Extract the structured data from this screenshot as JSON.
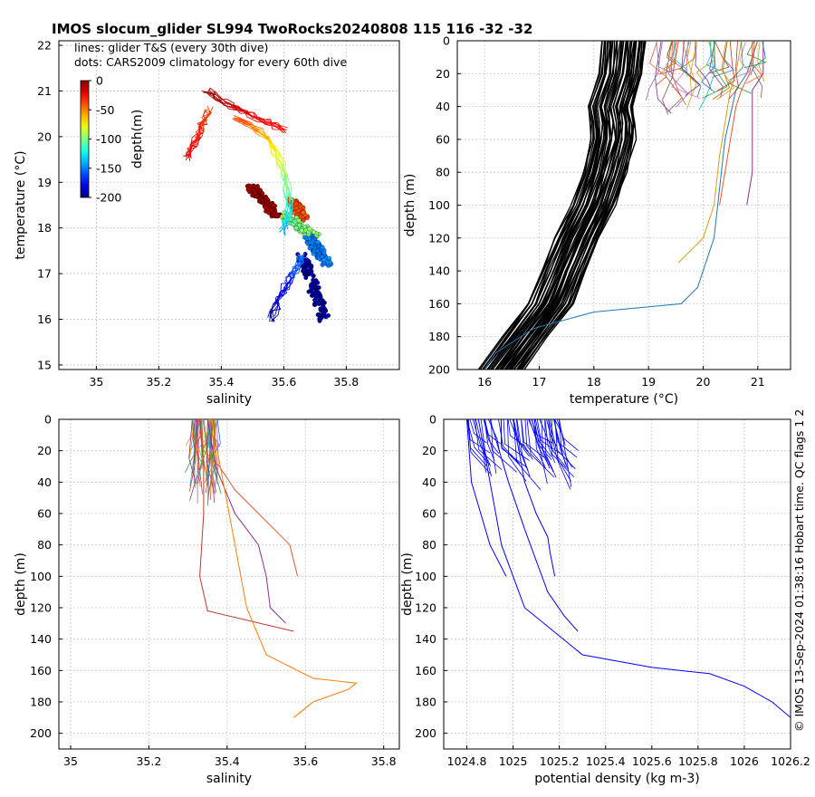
{
  "title": "IMOS slocum_glider SL994 TwoRocks20240808 115  116  -32  -32",
  "side_note": "© IMOS 13-Sep-2024 01:38:16 Hobart time. QC flags 1  2",
  "colors": {
    "glider_black": "#000000",
    "density_blue": "#0000ff",
    "grid": "#c8c8c8"
  },
  "chart_data": [
    {
      "id": "ts",
      "type": "scatter",
      "xlabel": "salinity",
      "ylabel": "temperature (°C)",
      "xlim": [
        34.88,
        35.97
      ],
      "ylim": [
        14.9,
        22.1
      ],
      "xticks": [
        35,
        35.2,
        35.4,
        35.6,
        35.8
      ],
      "yticks": [
        15,
        16,
        17,
        18,
        19,
        20,
        21,
        22
      ],
      "grid": true,
      "legend_text": [
        "lines: glider T&S (every 30th dive)",
        "dots: CARS2009 climatology for every 60th dive"
      ],
      "colorbar": {
        "label": "depth(m)",
        "ticks": [
          0,
          -50,
          -100,
          -150,
          -200
        ],
        "range": [
          -200,
          0
        ],
        "placement": "top-left"
      },
      "climatology_clusters": [
        {
          "depth": -5,
          "s": [
            35.49,
            35.58
          ],
          "t": [
            18.95,
            18.25
          ]
        },
        {
          "depth": -40,
          "s": [
            35.63,
            35.66
          ],
          "t": [
            18.6,
            18.2
          ]
        },
        {
          "depth": -100,
          "s": [
            35.6,
            35.7
          ],
          "t": [
            18.3,
            17.8
          ]
        },
        {
          "depth": -150,
          "s": [
            35.68,
            35.74
          ],
          "t": [
            17.8,
            17.2
          ]
        },
        {
          "depth": -195,
          "s": [
            35.66,
            35.73
          ],
          "t": [
            17.4,
            16.0
          ]
        }
      ],
      "glider_lines": [
        {
          "depth_from": -20,
          "depth_to": -40,
          "s": [
            35.29,
            35.33,
            35.36
          ],
          "t": [
            19.5,
            20.1,
            20.6
          ]
        },
        {
          "depth_from": -5,
          "depth_to": -30,
          "s": [
            35.35,
            35.42,
            35.5,
            35.6
          ],
          "t": [
            21.0,
            20.7,
            20.45,
            20.15
          ]
        },
        {
          "depth_from": -40,
          "depth_to": -150,
          "s": [
            35.45,
            35.55,
            35.6,
            35.62,
            35.6
          ],
          "t": [
            20.4,
            20.0,
            19.3,
            18.5,
            17.9
          ]
        },
        {
          "depth_from": -150,
          "depth_to": -200,
          "s": [
            35.66,
            35.61,
            35.56
          ],
          "t": [
            17.4,
            16.8,
            16.0
          ]
        }
      ]
    },
    {
      "id": "temp_depth",
      "type": "line",
      "xlabel": "temperature (°C)",
      "ylabel": "depth (m)",
      "xlim": [
        15.5,
        21.6
      ],
      "ylim": [
        0,
        200
      ],
      "y_reversed": true,
      "xticks": [
        16,
        17,
        18,
        19,
        20,
        21
      ],
      "yticks": [
        0,
        20,
        40,
        60,
        80,
        100,
        120,
        140,
        160,
        180,
        200
      ],
      "grid": true,
      "climatology_profile": {
        "depth": [
          0,
          20,
          40,
          50,
          60,
          80,
          100,
          120,
          140,
          160,
          180,
          200
        ],
        "temperature": [
          18.55,
          18.5,
          18.3,
          18.35,
          18.35,
          18.2,
          18.0,
          17.7,
          17.45,
          17.2,
          16.75,
          16.3
        ],
        "spread": 0.4
      },
      "glider_profiles": [
        {
          "depth": [
            0,
            10,
            20,
            30,
            40,
            60,
            80,
            100
          ],
          "temperature": [
            20.9,
            20.9,
            20.85,
            20.7,
            20.6,
            20.5,
            20.4,
            20.3
          ]
        },
        {
          "depth": [
            0,
            20,
            30,
            50,
            70,
            100,
            120,
            135
          ],
          "temperature": [
            20.7,
            20.6,
            20.5,
            20.4,
            20.3,
            20.2,
            20.0,
            19.55
          ]
        },
        {
          "depth": [
            0,
            20,
            30,
            60,
            90,
            120,
            150,
            160,
            165,
            175,
            190,
            200
          ],
          "temperature": [
            21.0,
            20.8,
            20.6,
            20.4,
            20.3,
            20.2,
            19.9,
            19.6,
            18.0,
            16.9,
            16.2,
            16.0
          ]
        },
        {
          "depth": [
            0,
            20,
            30,
            50,
            80,
            100
          ],
          "temperature": [
            21.1,
            21.1,
            20.9,
            20.9,
            20.9,
            20.8
          ]
        }
      ]
    },
    {
      "id": "sal_depth",
      "type": "line",
      "xlabel": "salinity",
      "ylabel": "depth (m)",
      "xlim": [
        34.97,
        35.84
      ],
      "ylim": [
        0,
        210
      ],
      "y_reversed": true,
      "xticks": [
        35,
        35.2,
        35.4,
        35.6,
        35.8
      ],
      "yticks": [
        0,
        20,
        40,
        60,
        80,
        100,
        120,
        140,
        160,
        180,
        200
      ],
      "grid": true,
      "glider_profiles": [
        {
          "depth": [
            0,
            20,
            30,
            45,
            60,
            70,
            80,
            100
          ],
          "salinity": [
            35.33,
            35.34,
            35.38,
            35.42,
            35.48,
            35.52,
            35.56,
            35.58
          ]
        },
        {
          "depth": [
            0,
            30,
            60,
            80,
            100,
            120,
            130
          ],
          "salinity": [
            35.35,
            35.37,
            35.42,
            35.48,
            35.5,
            35.51,
            35.55
          ]
        },
        {
          "depth": [
            0,
            30,
            60,
            100,
            122,
            135
          ],
          "salinity": [
            35.33,
            35.34,
            35.34,
            35.33,
            35.35,
            35.57
          ]
        },
        {
          "depth": [
            0,
            40,
            80,
            120,
            150,
            165,
            168,
            172,
            180,
            190
          ],
          "salinity": [
            35.36,
            35.39,
            35.42,
            35.45,
            35.5,
            35.62,
            35.73,
            35.71,
            35.62,
            35.57
          ]
        }
      ]
    },
    {
      "id": "dens_depth",
      "type": "line",
      "xlabel": "potential density (kg m-3)",
      "ylabel": "depth (m)",
      "xlim": [
        1024.7,
        1026.2
      ],
      "ylim": [
        0,
        210
      ],
      "y_reversed": true,
      "xticks": [
        1024.8,
        1025,
        1025.2,
        1025.4,
        1025.6,
        1025.8,
        1026,
        1026.2
      ],
      "yticks": [
        0,
        20,
        40,
        60,
        80,
        100,
        120,
        140,
        160,
        180,
        200
      ],
      "grid": true,
      "glider_profiles": [
        {
          "depth": [
            0,
            40,
            60,
            80,
            100
          ],
          "density": [
            1024.8,
            1024.82,
            1024.86,
            1024.9,
            1024.97
          ]
        },
        {
          "depth": [
            0,
            40,
            70,
            90,
            110,
            125,
            135
          ],
          "density": [
            1024.9,
            1024.98,
            1025.05,
            1025.1,
            1025.15,
            1025.22,
            1025.28
          ]
        },
        {
          "depth": [
            0,
            40,
            60,
            75,
            85,
            100
          ],
          "density": [
            1025.0,
            1025.05,
            1025.1,
            1025.15,
            1025.16,
            1025.18
          ]
        },
        {
          "depth": [
            0,
            40,
            80,
            120,
            150,
            158,
            162,
            170,
            180,
            190
          ],
          "density": [
            1024.85,
            1024.9,
            1024.95,
            1025.05,
            1025.3,
            1025.6,
            1025.85,
            1026.0,
            1026.12,
            1026.2
          ]
        }
      ]
    }
  ]
}
